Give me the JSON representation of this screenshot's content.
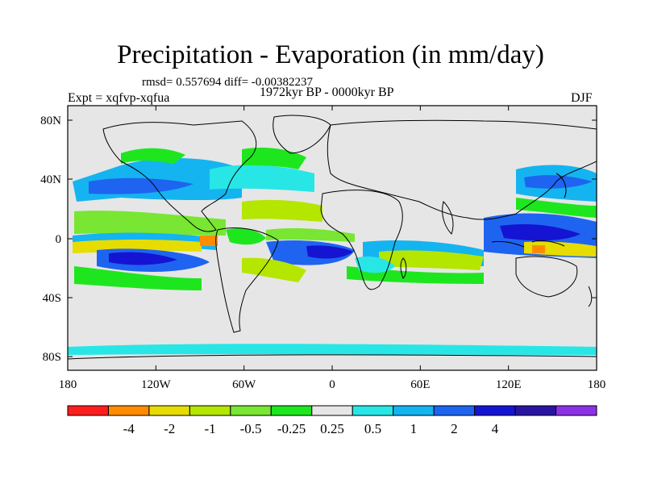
{
  "title": "Precipitation - Evaporation (in mm/day)",
  "stats": "rmsd= 0.557694 diff= -0.00382237",
  "experiment": "Expt = xqfvp-xqfua",
  "period": "1972kyr BP - 0000kyr BP",
  "season": "DJF",
  "lat_labels": [
    "80N",
    "40N",
    "0",
    "40S",
    "80S"
  ],
  "lon_labels": [
    "180",
    "120W",
    "60W",
    "0",
    "60E",
    "120E",
    "180"
  ],
  "colorbar": {
    "colors": [
      "#ff1e1e",
      "#ff8c00",
      "#e6dc00",
      "#b4e600",
      "#78e632",
      "#1ee61e",
      "#e6e6e6",
      "#28e6e6",
      "#14b4f0",
      "#1e64f0",
      "#1414d2",
      "#2814a0",
      "#8c32e6"
    ],
    "labels": [
      "-4",
      "-2",
      "-1",
      "-0.5",
      "-0.25",
      "0.25",
      "0.5",
      "1",
      "2",
      "4"
    ]
  },
  "map_colors": {
    "ocean_neutral": "#e6e6e6",
    "coast": "#000000"
  }
}
